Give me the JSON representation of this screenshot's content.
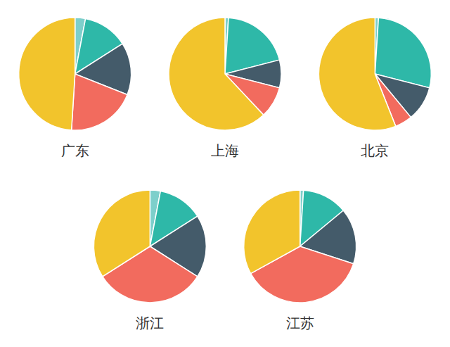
{
  "chart_data": [
    {
      "type": "pie",
      "title": "广东",
      "values": [
        3,
        13,
        15,
        20,
        49
      ],
      "colors": [
        "#7DCFCB",
        "#2EB8A8",
        "#445B6A",
        "#F26B5E",
        "#F2C42C"
      ]
    },
    {
      "type": "pie",
      "title": "上海",
      "values": [
        1,
        20,
        8,
        9,
        62
      ],
      "colors": [
        "#7DCFCB",
        "#2EB8A8",
        "#445B6A",
        "#F26B5E",
        "#F2C42C"
      ]
    },
    {
      "type": "pie",
      "title": "北京",
      "values": [
        1,
        28,
        10,
        5,
        56
      ],
      "colors": [
        "#7DCFCB",
        "#2EB8A8",
        "#445B6A",
        "#F26B5E",
        "#F2C42C"
      ]
    },
    {
      "type": "pie",
      "title": "浙江",
      "values": [
        3,
        13,
        18,
        32,
        34
      ],
      "colors": [
        "#7DCFCB",
        "#2EB8A8",
        "#445B6A",
        "#F26B5E",
        "#F2C42C"
      ]
    },
    {
      "type": "pie",
      "title": "江苏",
      "values": [
        1,
        13,
        16,
        37,
        33
      ],
      "colors": [
        "#7DCFCB",
        "#2EB8A8",
        "#445B6A",
        "#F26B5E",
        "#F2C42C"
      ]
    }
  ]
}
